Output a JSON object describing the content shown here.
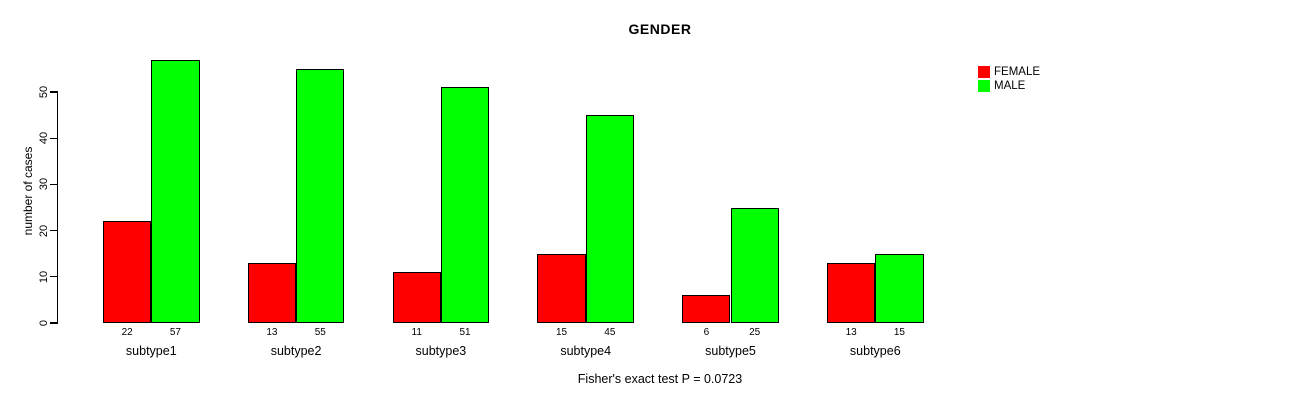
{
  "chart_data": {
    "type": "bar",
    "title": "GENDER",
    "xlabel": "",
    "ylabel": "number of cases",
    "footnote": "Fisher's exact test P = 0.0723",
    "categories": [
      "subtype1",
      "subtype2",
      "subtype3",
      "subtype4",
      "subtype5",
      "subtype6"
    ],
    "series": [
      {
        "name": "FEMALE",
        "color": "#ff0000",
        "values": [
          22,
          13,
          11,
          15,
          6,
          13
        ]
      },
      {
        "name": "MALE",
        "color": "#00ff00",
        "values": [
          57,
          55,
          51,
          45,
          25,
          15
        ]
      }
    ],
    "y_ticks": [
      0,
      10,
      20,
      30,
      40,
      50
    ],
    "ylim": [
      0,
      59
    ],
    "grid": false,
    "legend_position": "top-right",
    "bar_value_labels": true,
    "bar_border_color": "#000000",
    "axis_color": "#000000",
    "text_color": "#000000",
    "background_color": "#ffffff"
  }
}
